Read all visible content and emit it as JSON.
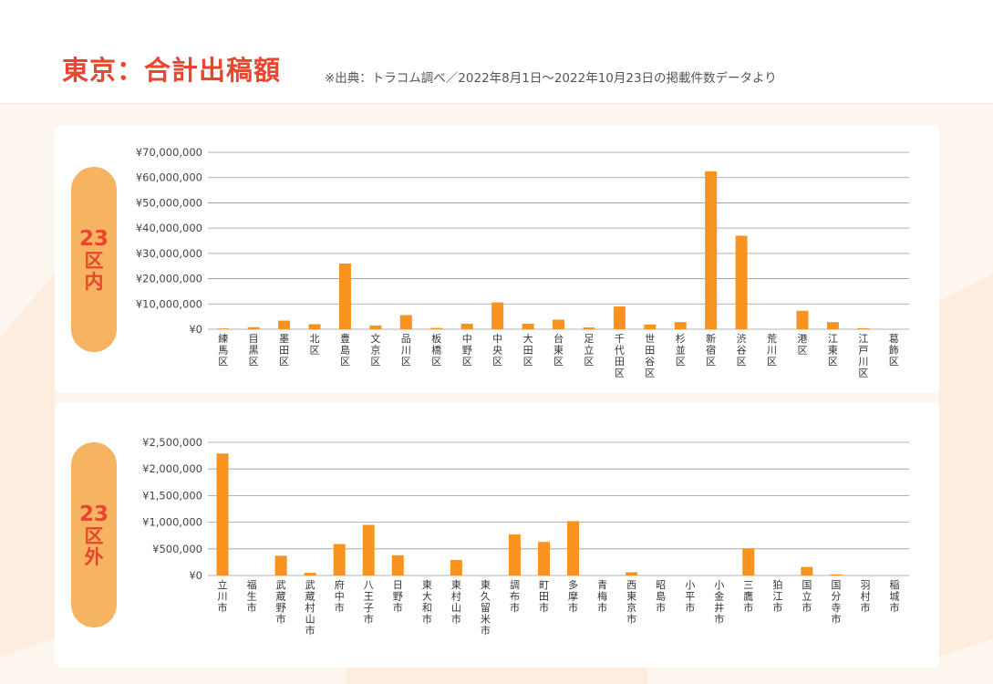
{
  "header": {
    "title": "東京：合計出稿額",
    "source": "※出典：トラコム調べ／2022年8月1日～2022年10月23日の掲載件数データより"
  },
  "colors": {
    "accent": "#e8462e",
    "bar": "#f7931e",
    "pill": "#f6b362",
    "grid": "#9a9a9a"
  },
  "chart_data": [
    {
      "type": "bar",
      "panel_label": {
        "num": "23",
        "chars": [
          "区",
          "内"
        ]
      },
      "ylim": [
        0,
        70000000
      ],
      "yticks": [
        "¥70,000,000",
        "¥60,000,000",
        "¥50,000,000",
        "¥40,000,000",
        "¥30,000,000",
        "¥20,000,000",
        "¥10,000,000",
        "¥0"
      ],
      "categories": [
        "練馬区",
        "目黒区",
        "墨田区",
        "北区",
        "豊島区",
        "文京区",
        "品川区",
        "板橋区",
        "中野区",
        "中央区",
        "大田区",
        "台東区",
        "足立区",
        "千代田区",
        "世田谷区",
        "杉並区",
        "新宿区",
        "渋谷区",
        "荒川区",
        "港区",
        "江東区",
        "江戸川区",
        "葛飾区"
      ],
      "values": [
        300000,
        800000,
        3400000,
        2000000,
        26000000,
        1500000,
        5600000,
        500000,
        2200000,
        10600000,
        2200000,
        3800000,
        700000,
        9000000,
        1900000,
        2800000,
        62500000,
        37000000,
        0,
        7300000,
        2800000,
        400000,
        0
      ],
      "grid": true
    },
    {
      "type": "bar",
      "panel_label": {
        "num": "23",
        "chars": [
          "区",
          "外"
        ]
      },
      "ylim": [
        0,
        2500000
      ],
      "yticks": [
        "¥2,500,000",
        "¥2,000,000",
        "¥1,500,000",
        "¥1,000,000",
        "¥500,000",
        "¥0"
      ],
      "categories": [
        "立川市",
        "福生市",
        "武蔵野市",
        "武蔵村山市",
        "府中市",
        "八王子市",
        "日野市",
        "東大和市",
        "東村山市",
        "東久留米市",
        "調布市",
        "町田市",
        "多摩市",
        "青梅市",
        "西東京市",
        "昭島市",
        "小平市",
        "小金井市",
        "三鷹市",
        "狛江市",
        "国立市",
        "国分寺市",
        "羽村市",
        "稲城市"
      ],
      "values": [
        2290000,
        0,
        370000,
        50000,
        590000,
        950000,
        380000,
        0,
        290000,
        0,
        770000,
        630000,
        1020000,
        0,
        60000,
        0,
        0,
        0,
        510000,
        0,
        160000,
        20000,
        0,
        0
      ],
      "grid": true
    }
  ]
}
